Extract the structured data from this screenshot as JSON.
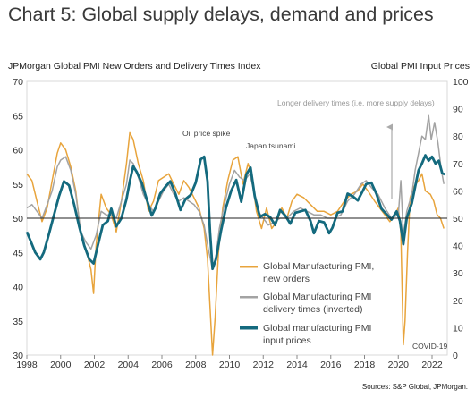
{
  "header": {
    "title": "Chart 5: Global supply delays, demand and prices",
    "left_axis_title": "JPMorgan Global PMI New Orders and Delivery Times Index",
    "right_axis_title": "Global PMI Input Prices",
    "source": "Sources: S&P Global, JPMorgan."
  },
  "chart_data": {
    "type": "line",
    "x_ticks": [
      "1998",
      "2000",
      "2002",
      "2004",
      "2006",
      "2008",
      "2010",
      "2012",
      "2014",
      "2016",
      "2018",
      "2020",
      "2022"
    ],
    "xlim": [
      1998,
      2022.9
    ],
    "y_left": {
      "ylim": [
        30,
        70
      ],
      "ticks": [
        30,
        35,
        40,
        45,
        50,
        55,
        60,
        65,
        70
      ]
    },
    "y_right": {
      "ylim": [
        0,
        100
      ],
      "ticks": [
        0,
        10,
        20,
        30,
        40,
        50,
        60,
        70,
        80,
        90,
        100
      ]
    },
    "reference_line": 50,
    "annotations": {
      "oil": "Oil price spike",
      "japan": "Japan tsunami",
      "longer": "Longer delivery times (i.e. more supply delays)",
      "covid": "COVID-19"
    },
    "legend": [
      {
        "label": "Global Manufacturing PMI, new orders",
        "color": "#e8a43c"
      },
      {
        "label": "Global Manufacturing PMI delivery times (inverted)",
        "color": "#a3a3a3"
      },
      {
        "label": "Global manufacturing PMI input prices",
        "color": "#146a7e"
      }
    ],
    "series": [
      {
        "name": "Global Manufacturing PMI, new orders",
        "axis": "left",
        "color": "#e8a43c",
        "points": [
          [
            1998.0,
            56.5
          ],
          [
            1998.3,
            55.5
          ],
          [
            1998.6,
            52.5
          ],
          [
            1998.9,
            49.5
          ],
          [
            1999.2,
            51.5
          ],
          [
            1999.5,
            55.5
          ],
          [
            1999.8,
            59.5
          ],
          [
            2000.0,
            61.0
          ],
          [
            2000.3,
            60.0
          ],
          [
            2000.6,
            57.5
          ],
          [
            2000.9,
            54.0
          ],
          [
            2001.2,
            47.5
          ],
          [
            2001.5,
            45.5
          ],
          [
            2001.8,
            42.5
          ],
          [
            2001.95,
            39.0
          ],
          [
            2002.1,
            46.0
          ],
          [
            2002.4,
            53.5
          ],
          [
            2002.7,
            51.5
          ],
          [
            2003.0,
            50.5
          ],
          [
            2003.3,
            48.0
          ],
          [
            2003.6,
            52.5
          ],
          [
            2003.9,
            58.0
          ],
          [
            2004.1,
            62.5
          ],
          [
            2004.3,
            61.5
          ],
          [
            2004.6,
            58.0
          ],
          [
            2004.9,
            55.5
          ],
          [
            2005.2,
            51.0
          ],
          [
            2005.5,
            52.5
          ],
          [
            2005.8,
            55.5
          ],
          [
            2006.1,
            56.0
          ],
          [
            2006.4,
            56.5
          ],
          [
            2006.7,
            55.0
          ],
          [
            2007.0,
            53.5
          ],
          [
            2007.3,
            55.5
          ],
          [
            2007.6,
            54.5
          ],
          [
            2007.9,
            53.0
          ],
          [
            2008.2,
            51.5
          ],
          [
            2008.5,
            48.5
          ],
          [
            2008.7,
            44.0
          ],
          [
            2008.85,
            37.0
          ],
          [
            2009.0,
            30.0
          ],
          [
            2009.15,
            35.5
          ],
          [
            2009.35,
            45.0
          ],
          [
            2009.6,
            51.5
          ],
          [
            2009.9,
            55.5
          ],
          [
            2010.2,
            58.5
          ],
          [
            2010.5,
            59.0
          ],
          [
            2010.8,
            55.0
          ],
          [
            2011.1,
            58.0
          ],
          [
            2011.3,
            56.5
          ],
          [
            2011.6,
            51.0
          ],
          [
            2011.9,
            48.5
          ],
          [
            2012.2,
            51.5
          ],
          [
            2012.5,
            48.5
          ],
          [
            2012.8,
            49.5
          ],
          [
            2013.1,
            51.5
          ],
          [
            2013.4,
            50.0
          ],
          [
            2013.7,
            52.5
          ],
          [
            2014.0,
            53.5
          ],
          [
            2014.4,
            53.0
          ],
          [
            2014.8,
            52.0
          ],
          [
            2015.2,
            51.0
          ],
          [
            2015.6,
            51.0
          ],
          [
            2016.0,
            50.5
          ],
          [
            2016.4,
            51.0
          ],
          [
            2016.8,
            52.5
          ],
          [
            2017.2,
            53.5
          ],
          [
            2017.6,
            54.0
          ],
          [
            2017.9,
            55.0
          ],
          [
            2018.2,
            54.0
          ],
          [
            2018.6,
            52.5
          ],
          [
            2018.9,
            51.5
          ],
          [
            2019.2,
            50.5
          ],
          [
            2019.5,
            49.5
          ],
          [
            2019.8,
            50.5
          ],
          [
            2020.0,
            51.5
          ],
          [
            2020.15,
            48.0
          ],
          [
            2020.3,
            31.5
          ],
          [
            2020.4,
            35.0
          ],
          [
            2020.55,
            45.0
          ],
          [
            2020.7,
            53.0
          ],
          [
            2020.9,
            54.5
          ],
          [
            2021.2,
            55.5
          ],
          [
            2021.4,
            56.5
          ],
          [
            2021.6,
            54.0
          ],
          [
            2021.9,
            53.5
          ],
          [
            2022.1,
            52.5
          ],
          [
            2022.3,
            50.5
          ],
          [
            2022.5,
            50.0
          ],
          [
            2022.7,
            48.5
          ]
        ]
      },
      {
        "name": "Global Manufacturing PMI delivery times (inverted)",
        "axis": "left",
        "color": "#a3a3a3",
        "points": [
          [
            1998.0,
            51.5
          ],
          [
            1998.3,
            52.0
          ],
          [
            1998.6,
            51.0
          ],
          [
            1998.9,
            50.0
          ],
          [
            1999.2,
            52.0
          ],
          [
            1999.5,
            54.0
          ],
          [
            1999.8,
            57.5
          ],
          [
            2000.0,
            58.5
          ],
          [
            2000.3,
            59.0
          ],
          [
            2000.6,
            57.0
          ],
          [
            2000.9,
            53.5
          ],
          [
            2001.2,
            48.0
          ],
          [
            2001.5,
            46.5
          ],
          [
            2001.8,
            45.5
          ],
          [
            2002.1,
            47.5
          ],
          [
            2002.4,
            51.0
          ],
          [
            2002.7,
            50.5
          ],
          [
            2003.0,
            50.5
          ],
          [
            2003.3,
            50.0
          ],
          [
            2003.6,
            52.5
          ],
          [
            2003.9,
            55.0
          ],
          [
            2004.1,
            58.5
          ],
          [
            2004.3,
            58.0
          ],
          [
            2004.6,
            56.0
          ],
          [
            2004.9,
            53.5
          ],
          [
            2005.2,
            52.0
          ],
          [
            2005.5,
            51.0
          ],
          [
            2005.8,
            52.5
          ],
          [
            2006.1,
            54.0
          ],
          [
            2006.4,
            55.0
          ],
          [
            2006.7,
            53.5
          ],
          [
            2007.0,
            52.5
          ],
          [
            2007.3,
            53.0
          ],
          [
            2007.6,
            52.5
          ],
          [
            2007.9,
            52.0
          ],
          [
            2008.2,
            51.0
          ],
          [
            2008.5,
            49.0
          ],
          [
            2008.75,
            45.5
          ],
          [
            2009.0,
            42.5
          ],
          [
            2009.2,
            44.5
          ],
          [
            2009.4,
            48.5
          ],
          [
            2009.7,
            52.0
          ],
          [
            2010.0,
            55.0
          ],
          [
            2010.3,
            57.0
          ],
          [
            2010.6,
            56.0
          ],
          [
            2010.9,
            55.5
          ],
          [
            2011.2,
            56.5
          ],
          [
            2011.4,
            54.5
          ],
          [
            2011.7,
            51.0
          ],
          [
            2012.0,
            50.0
          ],
          [
            2012.3,
            49.0
          ],
          [
            2012.7,
            49.5
          ],
          [
            2013.0,
            50.0
          ],
          [
            2013.4,
            50.0
          ],
          [
            2013.8,
            51.0
          ],
          [
            2014.2,
            51.5
          ],
          [
            2014.6,
            51.0
          ],
          [
            2015.0,
            50.5
          ],
          [
            2015.4,
            50.5
          ],
          [
            2015.8,
            50.0
          ],
          [
            2016.2,
            50.0
          ],
          [
            2016.6,
            50.5
          ],
          [
            2017.0,
            52.5
          ],
          [
            2017.4,
            53.5
          ],
          [
            2017.8,
            55.0
          ],
          [
            2018.1,
            55.5
          ],
          [
            2018.4,
            54.5
          ],
          [
            2018.8,
            53.5
          ],
          [
            2019.2,
            51.5
          ],
          [
            2019.6,
            50.0
          ],
          [
            2020.0,
            50.5
          ],
          [
            2020.15,
            55.5
          ],
          [
            2020.3,
            47.5
          ],
          [
            2020.5,
            51.0
          ],
          [
            2020.8,
            53.5
          ],
          [
            2021.0,
            57.0
          ],
          [
            2021.2,
            59.5
          ],
          [
            2021.4,
            62.0
          ],
          [
            2021.6,
            61.5
          ],
          [
            2021.8,
            65.0
          ],
          [
            2021.95,
            61.5
          ],
          [
            2022.15,
            64.0
          ],
          [
            2022.35,
            61.0
          ],
          [
            2022.55,
            57.0
          ],
          [
            2022.7,
            55.0
          ]
        ]
      },
      {
        "name": "Global manufacturing PMI input prices",
        "axis": "right",
        "color": "#146a7e",
        "points": [
          [
            1998.0,
            45.0
          ],
          [
            1998.2,
            42.0
          ],
          [
            1998.5,
            37.5
          ],
          [
            1998.8,
            35.0
          ],
          [
            1999.0,
            37.5
          ],
          [
            1999.3,
            44.0
          ],
          [
            1999.6,
            51.0
          ],
          [
            1999.9,
            58.0
          ],
          [
            2000.2,
            63.5
          ],
          [
            2000.5,
            62.0
          ],
          [
            2000.8,
            55.0
          ],
          [
            2001.1,
            47.0
          ],
          [
            2001.4,
            40.0
          ],
          [
            2001.7,
            35.0
          ],
          [
            2001.95,
            33.5
          ],
          [
            2002.2,
            40.0
          ],
          [
            2002.5,
            47.5
          ],
          [
            2002.8,
            49.0
          ],
          [
            2003.0,
            53.5
          ],
          [
            2003.3,
            47.0
          ],
          [
            2003.6,
            50.0
          ],
          [
            2003.9,
            57.0
          ],
          [
            2004.1,
            63.5
          ],
          [
            2004.3,
            69.0
          ],
          [
            2004.5,
            67.0
          ],
          [
            2004.8,
            63.0
          ],
          [
            2005.1,
            57.0
          ],
          [
            2005.4,
            51.0
          ],
          [
            2005.6,
            53.5
          ],
          [
            2005.9,
            59.0
          ],
          [
            2006.2,
            61.5
          ],
          [
            2006.5,
            63.5
          ],
          [
            2006.8,
            59.0
          ],
          [
            2007.1,
            53.0
          ],
          [
            2007.4,
            57.0
          ],
          [
            2007.7,
            58.5
          ],
          [
            2008.0,
            63.0
          ],
          [
            2008.3,
            71.5
          ],
          [
            2008.5,
            72.5
          ],
          [
            2008.7,
            63.5
          ],
          [
            2008.85,
            45.0
          ],
          [
            2009.0,
            31.5
          ],
          [
            2009.2,
            35.0
          ],
          [
            2009.5,
            45.5
          ],
          [
            2009.8,
            54.0
          ],
          [
            2010.1,
            60.0
          ],
          [
            2010.4,
            64.0
          ],
          [
            2010.7,
            56.0
          ],
          [
            2011.0,
            66.0
          ],
          [
            2011.25,
            68.5
          ],
          [
            2011.5,
            58.0
          ],
          [
            2011.8,
            50.5
          ],
          [
            2012.1,
            51.5
          ],
          [
            2012.4,
            50.5
          ],
          [
            2012.7,
            47.5
          ],
          [
            2013.0,
            53.0
          ],
          [
            2013.3,
            51.0
          ],
          [
            2013.6,
            48.0
          ],
          [
            2013.9,
            52.0
          ],
          [
            2014.2,
            52.5
          ],
          [
            2014.5,
            53.0
          ],
          [
            2014.8,
            49.0
          ],
          [
            2015.0,
            44.5
          ],
          [
            2015.3,
            49.0
          ],
          [
            2015.6,
            48.5
          ],
          [
            2015.9,
            44.5
          ],
          [
            2016.1,
            46.5
          ],
          [
            2016.4,
            52.0
          ],
          [
            2016.7,
            52.5
          ],
          [
            2017.0,
            59.0
          ],
          [
            2017.3,
            58.0
          ],
          [
            2017.6,
            56.5
          ],
          [
            2017.9,
            60.0
          ],
          [
            2018.1,
            62.5
          ],
          [
            2018.4,
            63.0
          ],
          [
            2018.7,
            59.0
          ],
          [
            2019.0,
            53.5
          ],
          [
            2019.3,
            51.5
          ],
          [
            2019.6,
            49.5
          ],
          [
            2019.9,
            52.5
          ],
          [
            2020.1,
            49.0
          ],
          [
            2020.3,
            40.5
          ],
          [
            2020.5,
            50.0
          ],
          [
            2020.8,
            55.5
          ],
          [
            2021.0,
            61.5
          ],
          [
            2021.2,
            67.5
          ],
          [
            2021.4,
            70.0
          ],
          [
            2021.6,
            73.0
          ],
          [
            2021.8,
            71.0
          ],
          [
            2022.0,
            72.5
          ],
          [
            2022.2,
            70.0
          ],
          [
            2022.4,
            71.0
          ],
          [
            2022.6,
            66.5
          ],
          [
            2022.75,
            66.0
          ]
        ]
      }
    ]
  }
}
